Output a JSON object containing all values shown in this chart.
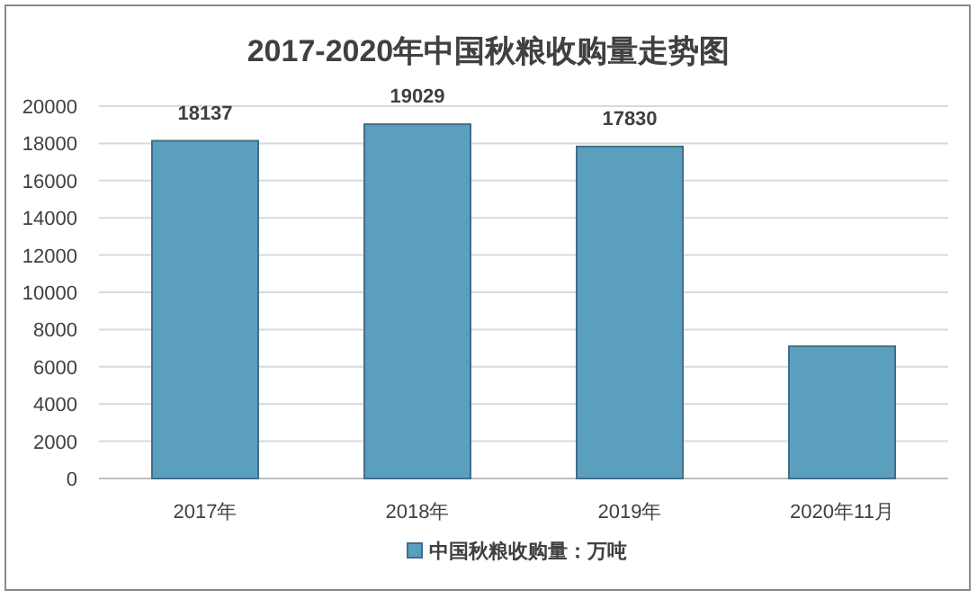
{
  "chart_data": {
    "type": "bar",
    "title": "2017-2020年中国秋粮收购量走势图",
    "categories": [
      "2017年",
      "2018年",
      "2019年",
      "2020年11月"
    ],
    "series": [
      {
        "name": "中国秋粮收购量：万吨",
        "color": "#5b9fbf",
        "values": [
          18137,
          19029,
          17830,
          7100
        ],
        "value_labels": [
          "18137",
          "19029",
          "17830",
          null
        ]
      }
    ],
    "ylim": [
      0,
      20000
    ],
    "yticks": [
      0,
      2000,
      4000,
      6000,
      8000,
      10000,
      12000,
      14000,
      16000,
      18000,
      20000
    ],
    "grid": "y",
    "legend": "bottom"
  }
}
